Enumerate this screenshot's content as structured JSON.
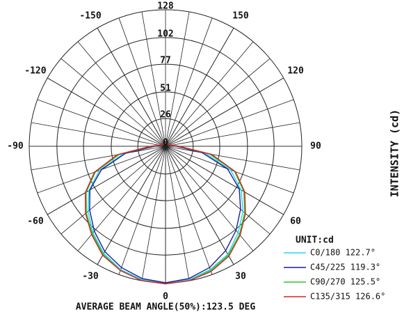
{
  "chart_data": {
    "type": "polar",
    "x": [
      -180,
      -170,
      -160,
      -150,
      -140,
      -130,
      -120,
      -110,
      -100,
      -90,
      -80,
      -70,
      -60,
      -50,
      -40,
      -30,
      -20,
      -10,
      0,
      10,
      20,
      30,
      40,
      50,
      60,
      70,
      80,
      90,
      100,
      110,
      120,
      130,
      140,
      150,
      160,
      170,
      180
    ],
    "xticks": [
      -150,
      -120,
      -90,
      -60,
      -30,
      0,
      30,
      60,
      90,
      120,
      150
    ],
    "ylim": [
      0,
      128
    ],
    "yticks": [
      0,
      26,
      51,
      77,
      102,
      128
    ],
    "series": [
      {
        "name": "C0/180 122.7°",
        "color": "#1fd8f0",
        "values": [
          3,
          3,
          3,
          3,
          3,
          3,
          3,
          3,
          5,
          11,
          40,
          66,
          83,
          95,
          106,
          116,
          123,
          127,
          128,
          127,
          123,
          117,
          106,
          95,
          82,
          65,
          38,
          11,
          5,
          3,
          3,
          3,
          3,
          3,
          3,
          3,
          3
        ]
      },
      {
        "name": "C45/225 119.3°",
        "color": "#1c1c9a",
        "values": [
          3,
          3,
          3,
          3,
          3,
          3,
          3,
          3,
          5,
          10,
          38,
          64,
          82,
          93,
          104,
          114,
          121,
          126,
          128,
          126,
          121,
          113,
          103,
          92,
          80,
          62,
          35,
          10,
          5,
          3,
          3,
          3,
          3,
          3,
          3,
          3,
          3
        ]
      },
      {
        "name": "C90/270 125.5°",
        "color": "#28c828",
        "values": [
          3,
          3,
          3,
          3,
          3,
          3,
          3,
          3,
          6,
          13,
          44,
          70,
          86,
          97,
          107,
          117,
          124,
          128,
          129,
          128,
          124,
          118,
          108,
          97,
          85,
          69,
          42,
          12,
          6,
          3,
          3,
          3,
          3,
          3,
          3,
          3,
          3
        ]
      },
      {
        "name": "C135/315 126.6°",
        "color": "#d82020",
        "values": [
          3,
          3,
          3,
          3,
          3,
          3,
          3,
          3,
          6,
          14,
          46,
          71,
          87,
          98,
          108,
          118,
          124,
          128,
          129,
          128,
          125,
          119,
          109,
          98,
          86,
          70,
          44,
          13,
          6,
          3,
          3,
          3,
          3,
          3,
          3,
          3,
          3
        ]
      }
    ],
    "unit_label": "UNIT:cd",
    "footer": "AVERAGE BEAM ANGLE(50%):123.5 DEG",
    "r_axis_label": "INTENSITY (cd)"
  }
}
